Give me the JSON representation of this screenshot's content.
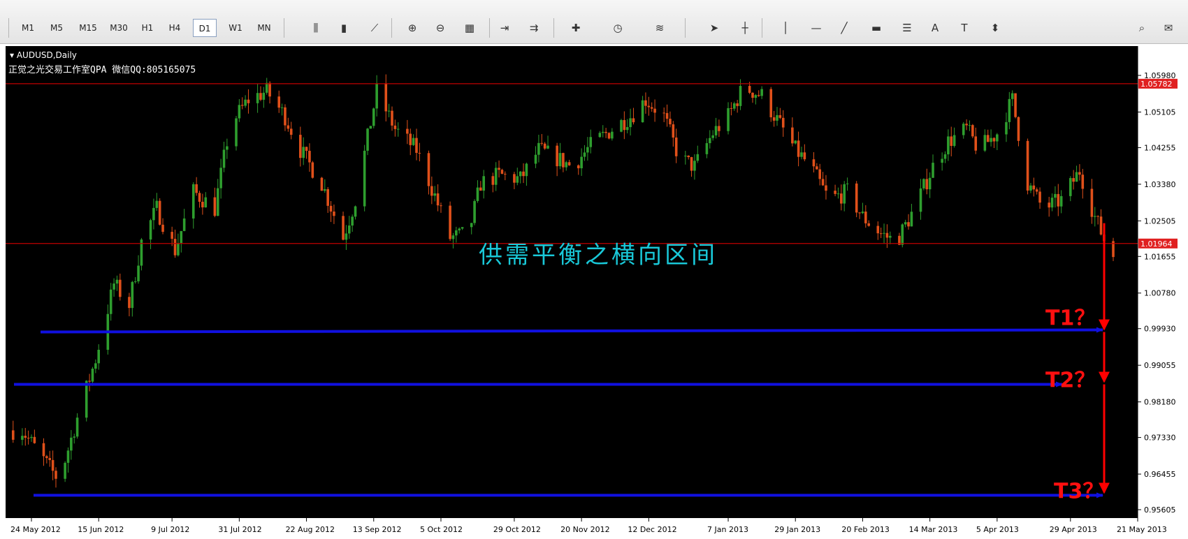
{
  "toolbar": {
    "timeframes": [
      "M1",
      "M5",
      "M15",
      "M30",
      "H1",
      "H4",
      "D1",
      "W1",
      "MN"
    ],
    "active_timeframe": "D1",
    "icons": [
      "bar-chart-icon",
      "candlestick-icon",
      "line-chart-icon",
      "zoom-in-icon",
      "zoom-out-icon",
      "tile-windows-icon",
      "chart-shift-icon",
      "autoscroll-icon",
      "new-order-icon",
      "periods-icon",
      "indicators-icon",
      "cursor-icon",
      "crosshair-icon",
      "vertical-line-icon",
      "horizontal-line-icon",
      "trendline-icon",
      "rectangle-icon",
      "fibonacci-icon",
      "text-icon",
      "text-label-icon",
      "arrows-icon",
      "search-icon",
      "chat-icon"
    ],
    "text_tool_label": "A",
    "text_label_tool_label": "T"
  },
  "chart_data": {
    "type": "candlestick",
    "symbol_label": "AUDUSD,Daily",
    "subtitle": "正觉之光交易工作室QPA 微信QQ:805165075",
    "annotation": "供需平衡之横向区间",
    "y_ticks": [
      "1.05980",
      "1.05105",
      "1.04255",
      "1.03380",
      "1.02505",
      "1.01655",
      "1.00780",
      "0.99930",
      "0.99055",
      "0.98180",
      "0.97330",
      "0.96455",
      "0.95605"
    ],
    "ylim": [
      0.95605,
      1.0598
    ],
    "x_tick_labels": [
      "24 May 2012",
      "15 Jun 2012",
      "9 Jul 2012",
      "31 Jul 2012",
      "22 Aug 2012",
      "13 Sep 2012",
      "5 Oct 2012",
      "29 Oct 2012",
      "20 Nov 2012",
      "12 Dec 2012",
      "7 Jan 2013",
      "29 Jan 2013",
      "20 Feb 2013",
      "14 Mar 2013",
      "5 Apr 2013",
      "29 Apr 2013",
      "21 May 2013"
    ],
    "horizontal_lines": [
      {
        "value": 1.05782,
        "label": "1.05782",
        "color": "#c00000"
      },
      {
        "value": 1.01964,
        "label": "1.01964",
        "color": "#c00000"
      }
    ],
    "targets": [
      {
        "label": "T1？",
        "value": 0.9985
      },
      {
        "label": "T2？",
        "value": 0.986
      },
      {
        "label": "T3？",
        "value": 0.9595
      }
    ],
    "projection_start": 1.0245,
    "candle_anchors": [
      {
        "date": "2012-05-21",
        "price": 0.975
      },
      {
        "date": "2012-05-28",
        "price": 0.968
      },
      {
        "date": "2012-06-02",
        "price": 0.963
      },
      {
        "date": "2012-06-08",
        "price": 0.978
      },
      {
        "date": "2012-06-14",
        "price": 0.992
      },
      {
        "date": "2012-06-20",
        "price": 1.01
      },
      {
        "date": "2012-06-25",
        "price": 1.005
      },
      {
        "date": "2012-06-29",
        "price": 1.02
      },
      {
        "date": "2012-07-04",
        "price": 1.028
      },
      {
        "date": "2012-07-10",
        "price": 1.018
      },
      {
        "date": "2012-07-16",
        "price": 1.032
      },
      {
        "date": "2012-07-23",
        "price": 1.028
      },
      {
        "date": "2012-07-28",
        "price": 1.048
      },
      {
        "date": "2012-08-03",
        "price": 1.054
      },
      {
        "date": "2012-08-09",
        "price": 1.056
      },
      {
        "date": "2012-08-15",
        "price": 1.05
      },
      {
        "date": "2012-08-20",
        "price": 1.042
      },
      {
        "date": "2012-08-27",
        "price": 1.034
      },
      {
        "date": "2012-09-03",
        "price": 1.021
      },
      {
        "date": "2012-09-07",
        "price": 1.03
      },
      {
        "date": "2012-09-14",
        "price": 1.056
      },
      {
        "date": "2012-09-20",
        "price": 1.047
      },
      {
        "date": "2012-09-27",
        "price": 1.042
      },
      {
        "date": "2012-10-03",
        "price": 1.031
      },
      {
        "date": "2012-10-08",
        "price": 1.021
      },
      {
        "date": "2012-10-14",
        "price": 1.022
      },
      {
        "date": "2012-10-18",
        "price": 1.034
      },
      {
        "date": "2012-10-24",
        "price": 1.036
      },
      {
        "date": "2012-10-31",
        "price": 1.035
      },
      {
        "date": "2012-11-06",
        "price": 1.042
      },
      {
        "date": "2012-11-12",
        "price": 1.04
      },
      {
        "date": "2012-11-17",
        "price": 1.038
      },
      {
        "date": "2012-11-23",
        "price": 1.043
      },
      {
        "date": "2012-11-30",
        "price": 1.047
      },
      {
        "date": "2012-12-06",
        "price": 1.05
      },
      {
        "date": "2012-12-11",
        "price": 1.054
      },
      {
        "date": "2012-12-17",
        "price": 1.05
      },
      {
        "date": "2012-12-22",
        "price": 1.04
      },
      {
        "date": "2012-12-27",
        "price": 1.038
      },
      {
        "date": "2013-01-02",
        "price": 1.046
      },
      {
        "date": "2013-01-07",
        "price": 1.05
      },
      {
        "date": "2013-01-12",
        "price": 1.057
      },
      {
        "date": "2013-01-18",
        "price": 1.055
      },
      {
        "date": "2013-01-24",
        "price": 1.048
      },
      {
        "date": "2013-01-29",
        "price": 1.042
      },
      {
        "date": "2013-02-03",
        "price": 1.038
      },
      {
        "date": "2013-02-09",
        "price": 1.03
      },
      {
        "date": "2013-02-15",
        "price": 1.032
      },
      {
        "date": "2013-02-20",
        "price": 1.026
      },
      {
        "date": "2013-02-26",
        "price": 1.022
      },
      {
        "date": "2013-03-03",
        "price": 1.02
      },
      {
        "date": "2013-03-09",
        "price": 1.028
      },
      {
        "date": "2013-03-15",
        "price": 1.038
      },
      {
        "date": "2013-03-20",
        "price": 1.044
      },
      {
        "date": "2013-03-26",
        "price": 1.047
      },
      {
        "date": "2013-03-30",
        "price": 1.042
      },
      {
        "date": "2013-04-05",
        "price": 1.046
      },
      {
        "date": "2013-04-10",
        "price": 1.054
      },
      {
        "date": "2013-04-15",
        "price": 1.034
      },
      {
        "date": "2013-04-20",
        "price": 1.028
      },
      {
        "date": "2013-04-26",
        "price": 1.03
      },
      {
        "date": "2013-05-02",
        "price": 1.037
      },
      {
        "date": "2013-05-07",
        "price": 1.026
      },
      {
        "date": "2013-05-12",
        "price": 1.017
      }
    ],
    "colors": {
      "background": "#000000",
      "bull": "#2e9e2e",
      "bear": "#e0501a",
      "level": "#c00000",
      "target_line": "#1010e0",
      "projection": "#ff0000",
      "annotation": "#19c8d8"
    }
  }
}
